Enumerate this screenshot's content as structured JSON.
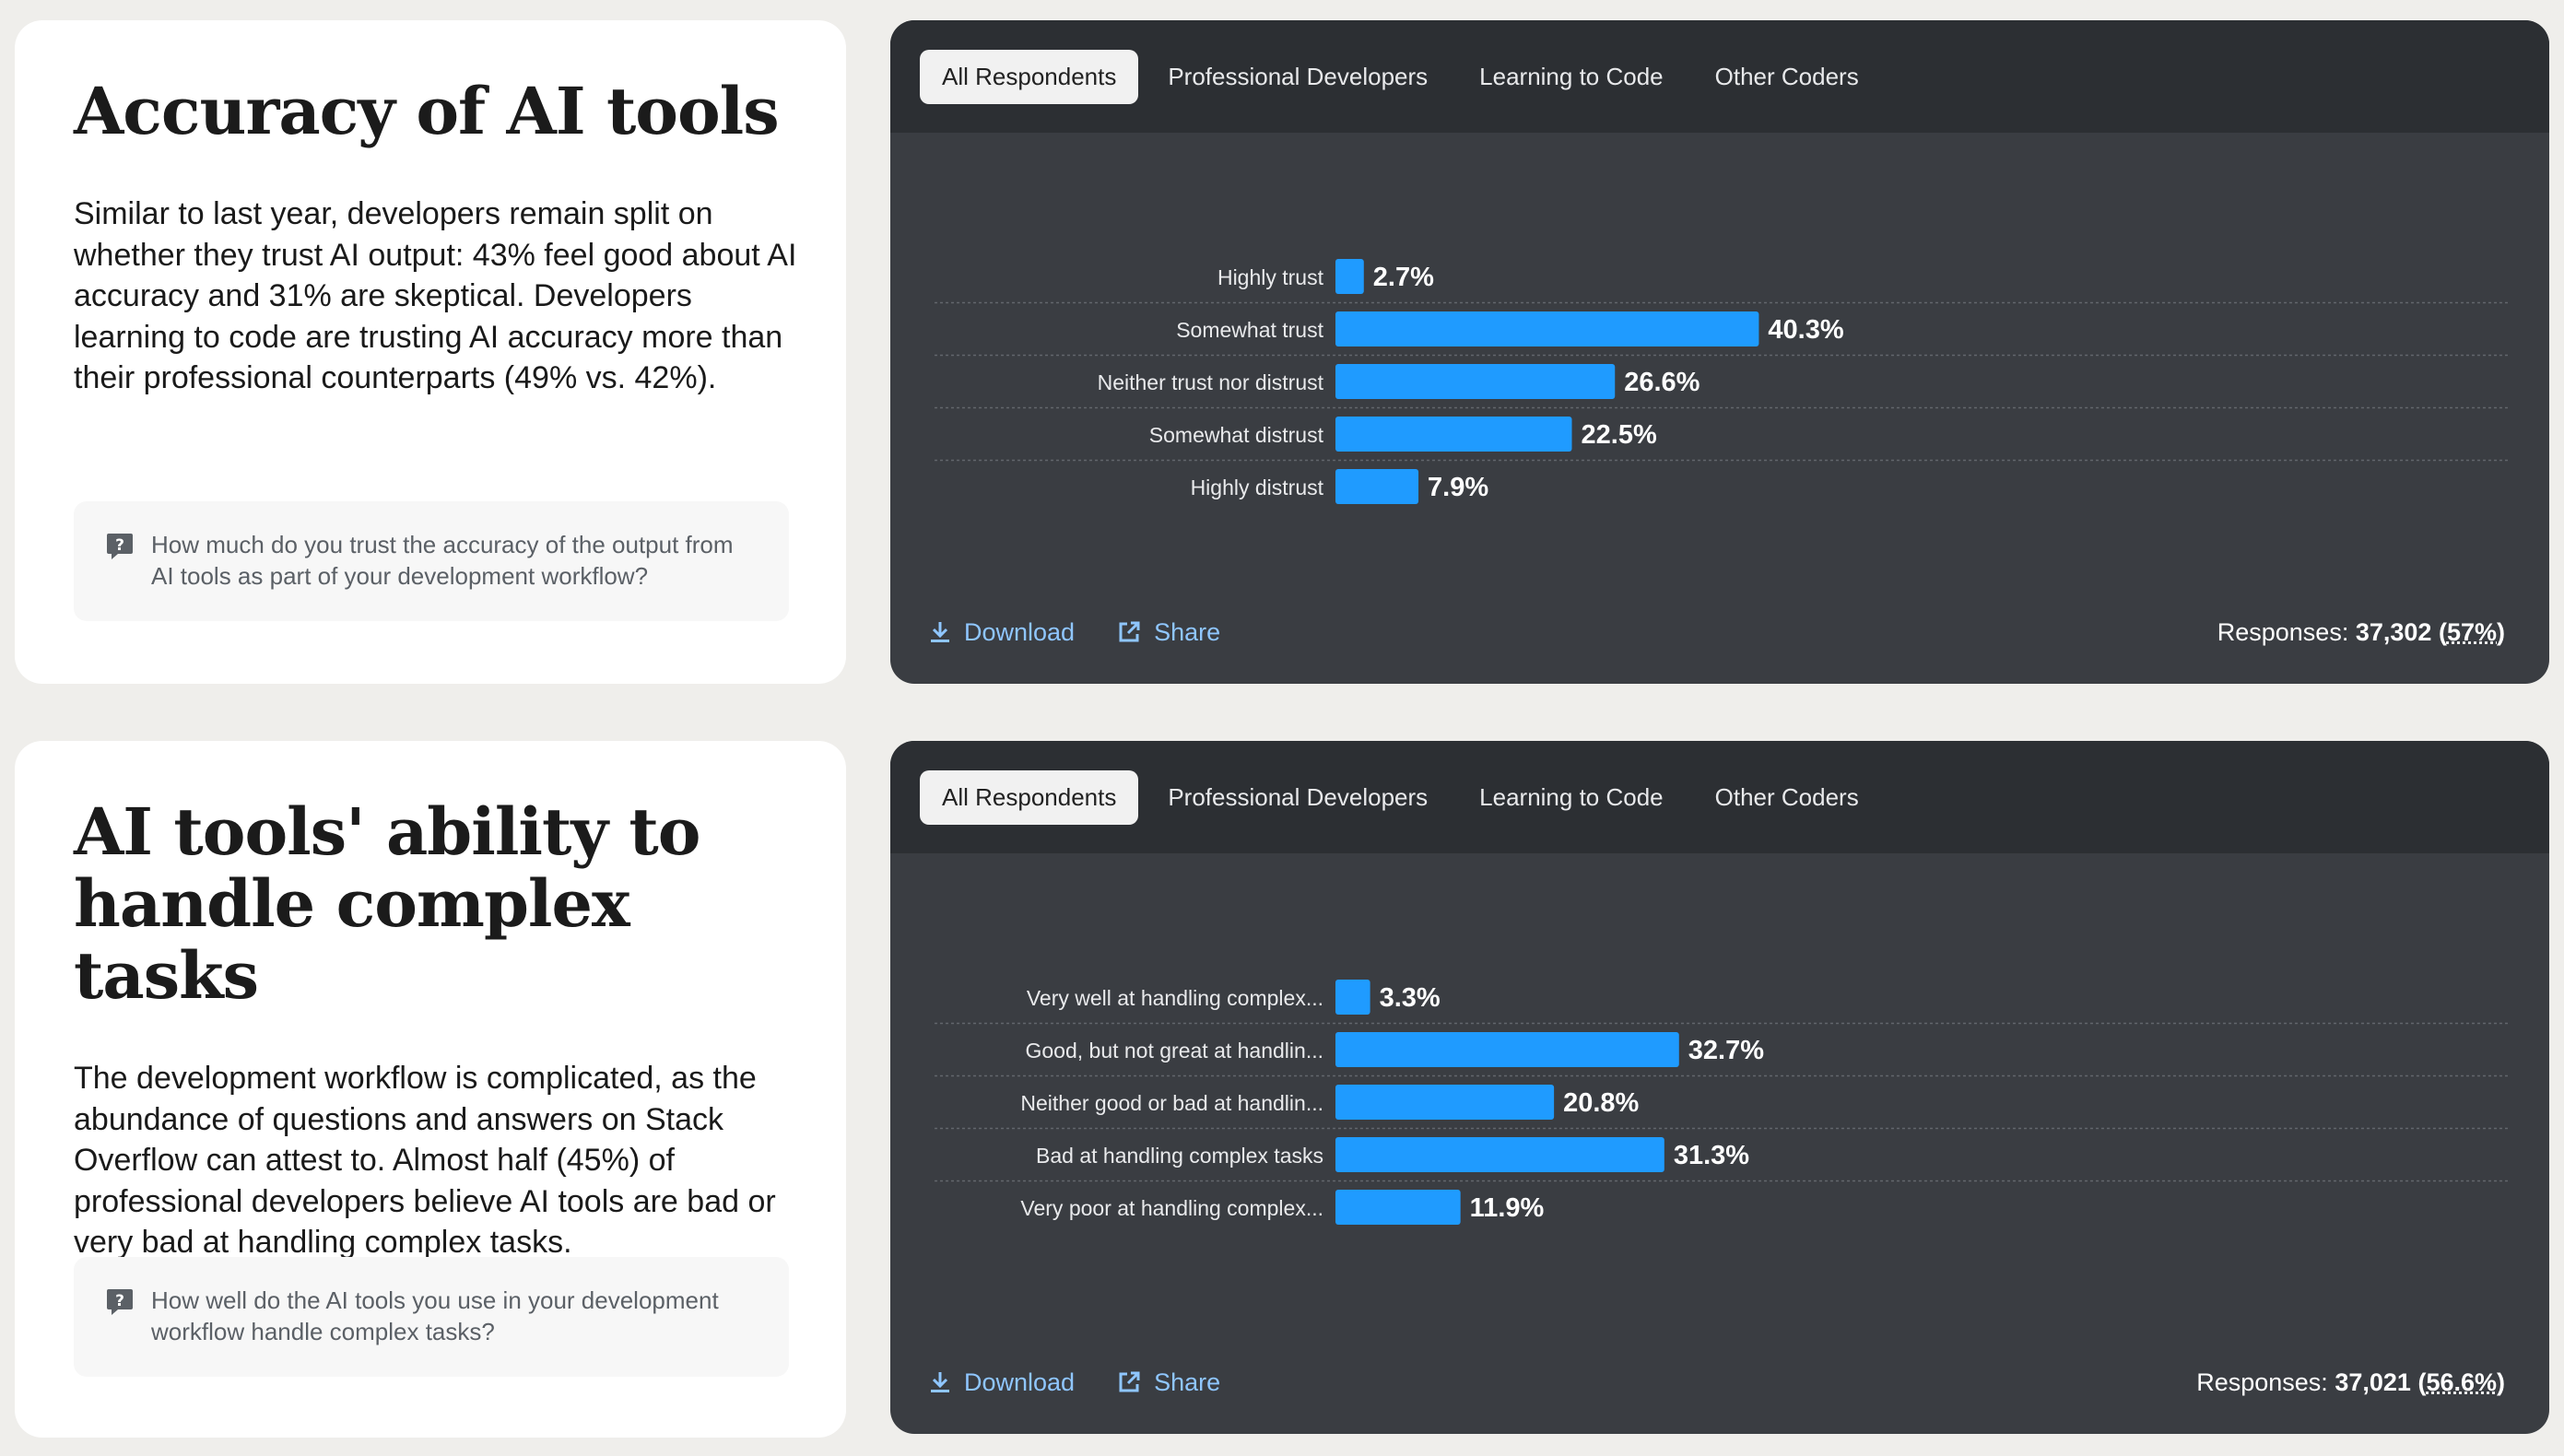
{
  "sections": [
    {
      "title": "Accuracy of AI tools",
      "description": "Similar to last year, developers remain split on whether they trust AI output: 43% feel good about AI accuracy and 31% are skeptical. Developers learning to code are trusting AI accuracy more than their professional counterparts (49% vs. 42%).",
      "question": "How much do you trust the accuracy of the output from AI tools as part of your development workflow?",
      "tabs": [
        "All Respondents",
        "Professional Developers",
        "Learning to Code",
        "Other Coders"
      ],
      "active_tab": "All Respondents",
      "download_label": "Download",
      "share_label": "Share",
      "responses_label": "Responses:",
      "responses_count": "37,302",
      "responses_pct": "57%"
    },
    {
      "title": "AI tools' ability to handle complex tasks",
      "description": "The development workflow is complicated, as the abundance of questions and answers on Stack Overflow can attest to. Almost half (45%) of professional developers believe AI tools are bad or very bad at handling complex tasks.",
      "question": "How well do the AI tools you use in your development workflow handle complex tasks?",
      "tabs": [
        "All Respondents",
        "Professional Developers",
        "Learning to Code",
        "Other Coders"
      ],
      "active_tab": "All Respondents",
      "download_label": "Download",
      "share_label": "Share",
      "responses_label": "Responses:",
      "responses_count": "37,021",
      "responses_pct": "56.6%"
    }
  ],
  "colors": {
    "bar": "#1f9bff",
    "card_dark": "#3a3d42",
    "tabbar": "#2c2f33",
    "link": "#8fc6ff"
  },
  "icons": {
    "question": "question-square-icon",
    "download": "download-icon",
    "share": "external-link-icon"
  },
  "chart_data": [
    {
      "type": "bar",
      "orientation": "horizontal",
      "categories": [
        "Highly trust",
        "Somewhat trust",
        "Neither trust nor distrust",
        "Somewhat distrust",
        "Highly distrust"
      ],
      "values": [
        2.7,
        40.3,
        26.6,
        22.5,
        7.9
      ],
      "value_labels": [
        "2.7%",
        "40.3%",
        "26.6%",
        "22.5%",
        "7.9%"
      ],
      "title": "",
      "xlabel": "",
      "ylabel": ""
    },
    {
      "type": "bar",
      "orientation": "horizontal",
      "categories": [
        "Very well at handling complex...",
        "Good, but not great at handlin...",
        "Neither good or bad at handlin...",
        "Bad at handling complex tasks",
        "Very poor at handling complex..."
      ],
      "values": [
        3.3,
        32.7,
        20.8,
        31.3,
        11.9
      ],
      "value_labels": [
        "3.3%",
        "32.7%",
        "20.8%",
        "31.3%",
        "11.9%"
      ],
      "title": "",
      "xlabel": "",
      "ylabel": ""
    }
  ]
}
